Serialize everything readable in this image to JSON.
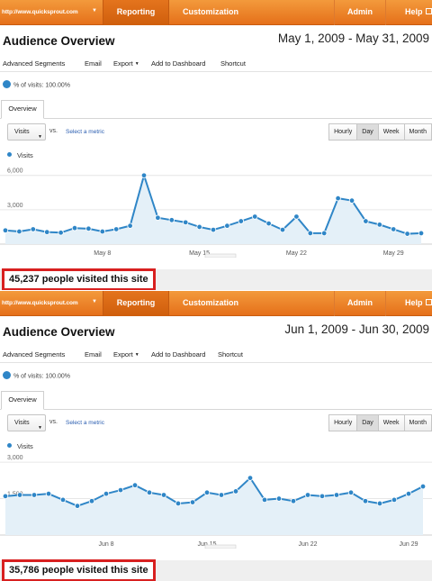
{
  "panels": [
    {
      "nav": {
        "url": "http://www.quicksprout.com",
        "tabs": [
          "Reporting",
          "Customization"
        ],
        "admin": "Admin",
        "help": "Help"
      },
      "title": "Audience Overview",
      "date_range": "May 1, 2009 - May 31, 2009",
      "toolbar": {
        "advanced_segments": "Advanced Segments",
        "email": "Email",
        "export": "Export",
        "add_to_dashboard": "Add to Dashboard",
        "shortcut": "Shortcut"
      },
      "segment_label": "% of visits: 100.00%",
      "overview_tab": "Overview",
      "metric_select": "Visits",
      "vs": "vs.",
      "select_metric": "Select a metric",
      "granularity": [
        "Hourly",
        "Day",
        "Week",
        "Month"
      ],
      "granularity_selected": "Day",
      "visited_text": "45,237 people visited this site",
      "chart_data": {
        "type": "area",
        "series": [
          {
            "name": "Visits",
            "color": "#2f86c7",
            "x": [
              1,
              2,
              3,
              4,
              5,
              6,
              7,
              8,
              9,
              10,
              11,
              12,
              13,
              14,
              15,
              16,
              17,
              18,
              19,
              20,
              21,
              22,
              23,
              24,
              25,
              26,
              27,
              28,
              29,
              30,
              31
            ],
            "values": [
              1200,
              1100,
              1300,
              1050,
              1000,
              1400,
              1350,
              1100,
              1300,
              1600,
              6000,
              2300,
              2100,
              1900,
              1500,
              1250,
              1600,
              2000,
              2400,
              1800,
              1250,
              2400,
              950,
              950,
              4000,
              3800,
              2000,
              1700,
              1300,
              900,
              950
            ]
          }
        ],
        "ylim": [
          0,
          7000
        ],
        "y_ticks": [
          {
            "value": 3000,
            "label": "3,000"
          },
          {
            "value": 6000,
            "label": "6,000"
          }
        ],
        "x_ticks": [
          {
            "value": 8,
            "label": "May 8"
          },
          {
            "value": 15,
            "label": "May 15"
          },
          {
            "value": 22,
            "label": "May 22"
          },
          {
            "value": 29,
            "label": "May 29"
          }
        ],
        "grid": true,
        "legend": "top-left"
      }
    },
    {
      "nav": {
        "url": "http://www.quicksprout.com",
        "tabs": [
          "Reporting",
          "Customization"
        ],
        "admin": "Admin",
        "help": "Help"
      },
      "title": "Audience Overview",
      "date_range": "Jun 1, 2009 - Jun 30, 2009",
      "toolbar": {
        "advanced_segments": "Advanced Segments",
        "email": "Email",
        "export": "Export",
        "add_to_dashboard": "Add to Dashboard",
        "shortcut": "Shortcut"
      },
      "segment_label": "% of visits: 100.00%",
      "overview_tab": "Overview",
      "metric_select": "Visits",
      "vs": "vs.",
      "select_metric": "Select a metric",
      "granularity": [
        "Hourly",
        "Day",
        "Week",
        "Month"
      ],
      "granularity_selected": "Day",
      "visited_text": "35,786 people visited this site",
      "chart_data": {
        "type": "area",
        "series": [
          {
            "name": "Visits",
            "color": "#2f86c7",
            "x": [
              1,
              2,
              3,
              4,
              5,
              6,
              7,
              8,
              9,
              10,
              11,
              12,
              13,
              14,
              15,
              16,
              17,
              18,
              19,
              20,
              21,
              22,
              23,
              24,
              25,
              26,
              27,
              28,
              29,
              30
            ],
            "values": [
              1600,
              1650,
              1650,
              1700,
              1450,
              1200,
              1400,
              1700,
              1850,
              2050,
              1750,
              1650,
              1300,
              1350,
              1750,
              1650,
              1800,
              2350,
              1450,
              1500,
              1400,
              1650,
              1600,
              1650,
              1750,
              1400,
              1300,
              1450,
              1700,
              2000
            ]
          }
        ],
        "ylim": [
          0,
          3300
        ],
        "y_ticks": [
          {
            "value": 1500,
            "label": "1,500"
          },
          {
            "value": 3000,
            "label": "3,000"
          }
        ],
        "x_ticks": [
          {
            "value": 8,
            "label": "Jun 8"
          },
          {
            "value": 15,
            "label": "Jun 15"
          },
          {
            "value": 22,
            "label": "Jun 22"
          },
          {
            "value": 29,
            "label": "Jun 29"
          }
        ],
        "grid": true,
        "legend": "top-left"
      }
    }
  ]
}
